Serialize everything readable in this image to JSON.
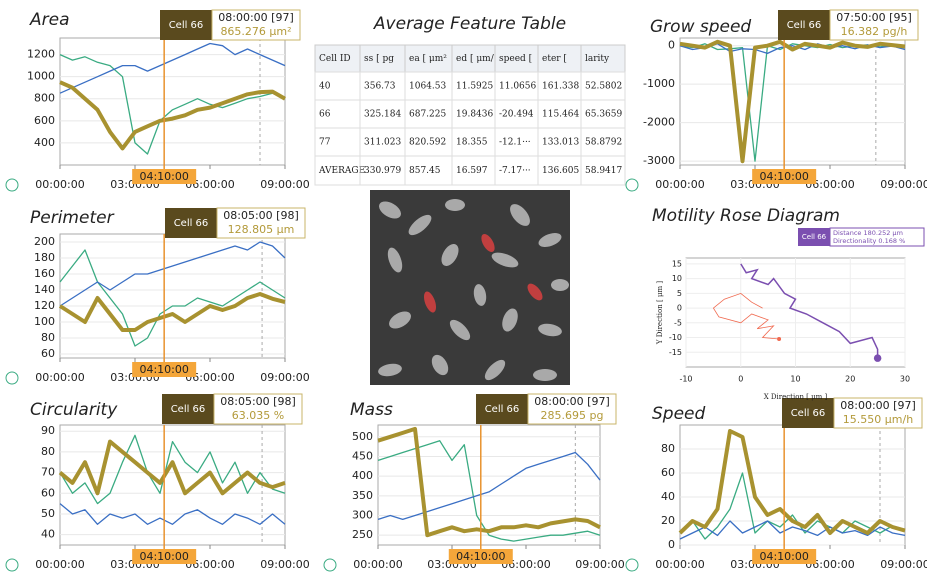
{
  "chart_data": [
    {
      "type": "line",
      "title": "Area",
      "x": [
        0,
        0.5,
        1,
        1.5,
        2,
        2.5,
        3,
        3.5,
        4,
        4.5,
        5,
        5.5,
        6,
        6.5,
        7,
        7.5,
        8,
        8.5,
        9
      ],
      "xlim": [
        0,
        9
      ],
      "xticks": [
        {
          "value": 0,
          "label": "00:00:00"
        },
        {
          "value": 3,
          "label": "03:00:00"
        },
        {
          "value": 6,
          "label": "06:00:00"
        },
        {
          "value": 9,
          "label": "09:00:00"
        }
      ],
      "ylim": [
        200,
        1350
      ],
      "yticks": [
        400,
        600,
        800,
        1000,
        1200
      ],
      "grid": true,
      "series": [
        {
          "color": "#3aab82",
          "width": 1.3,
          "values": [
            1200,
            1150,
            1180,
            1130,
            1100,
            1000,
            400,
            300,
            600,
            700,
            750,
            800,
            750,
            720,
            760,
            800,
            820,
            850,
            800
          ]
        },
        {
          "color": "#3a6fc4",
          "width": 1.3,
          "values": [
            850,
            900,
            950,
            1000,
            1050,
            1100,
            1100,
            1050,
            1100,
            1150,
            1200,
            1250,
            1300,
            1280,
            1200,
            1250,
            1200,
            1150,
            1100
          ]
        },
        {
          "color": "#a89230",
          "width": 4,
          "values": [
            950,
            900,
            800,
            700,
            500,
            350,
            500,
            550,
            600,
            620,
            650,
            700,
            720,
            760,
            800,
            840,
            860,
            865,
            800
          ]
        }
      ],
      "cursor": {
        "value": 4.1667,
        "label": "04:10:00"
      },
      "tooltip": {
        "x": 8,
        "cell": "Cell 66",
        "time": "08:00:00 [97]",
        "value": "865.276 μm²"
      }
    },
    {
      "type": "line",
      "title": "Perimeter",
      "x": [
        0,
        0.5,
        1,
        1.5,
        2,
        2.5,
        3,
        3.5,
        4,
        4.5,
        5,
        5.5,
        6,
        6.5,
        7,
        7.5,
        8,
        8.5,
        9
      ],
      "xlim": [
        0,
        9
      ],
      "xticks": [
        {
          "value": 0,
          "label": "00:00:00"
        },
        {
          "value": 3,
          "label": "03:00:00"
        },
        {
          "value": 6,
          "label": "06:00:00"
        },
        {
          "value": 9,
          "label": "09:00:00"
        }
      ],
      "ylim": [
        55,
        210
      ],
      "yticks": [
        60,
        80,
        100,
        120,
        140,
        160,
        180,
        200
      ],
      "grid": true,
      "series": [
        {
          "color": "#3aab82",
          "width": 1.3,
          "values": [
            150,
            170,
            190,
            150,
            130,
            110,
            70,
            80,
            110,
            120,
            120,
            130,
            125,
            120,
            130,
            140,
            150,
            140,
            130
          ]
        },
        {
          "color": "#3a6fc4",
          "width": 1.3,
          "values": [
            120,
            130,
            140,
            150,
            140,
            150,
            160,
            160,
            165,
            170,
            175,
            180,
            185,
            190,
            195,
            190,
            200,
            195,
            180
          ]
        },
        {
          "color": "#a89230",
          "width": 4,
          "values": [
            120,
            110,
            100,
            130,
            110,
            90,
            90,
            100,
            105,
            110,
            100,
            110,
            120,
            115,
            120,
            130,
            135,
            129,
            125
          ]
        }
      ],
      "cursor": {
        "value": 4.1667,
        "label": "04:10:00"
      },
      "tooltip": {
        "x": 8.0833,
        "cell": "Cell 66",
        "time": "08:05:00 [98]",
        "value": "128.805 μm"
      }
    },
    {
      "type": "line",
      "title": "Circularity",
      "x": [
        0,
        0.5,
        1,
        1.5,
        2,
        2.5,
        3,
        3.5,
        4,
        4.5,
        5,
        5.5,
        6,
        6.5,
        7,
        7.5,
        8,
        8.5,
        9
      ],
      "xlim": [
        0,
        9
      ],
      "xticks": [
        {
          "value": 0,
          "label": "00:00:00"
        },
        {
          "value": 3,
          "label": "03:00:00"
        },
        {
          "value": 6,
          "label": "06:00:00"
        },
        {
          "value": 9,
          "label": "09:00:00"
        }
      ],
      "ylim": [
        35,
        93
      ],
      "yticks": [
        40,
        50,
        60,
        70,
        80,
        90
      ],
      "grid": true,
      "series": [
        {
          "color": "#3aab82",
          "width": 1.3,
          "values": [
            70,
            60,
            65,
            55,
            60,
            75,
            88,
            70,
            60,
            85,
            75,
            70,
            80,
            65,
            75,
            60,
            70,
            62,
            60
          ]
        },
        {
          "color": "#3a6fc4",
          "width": 1.3,
          "values": [
            55,
            50,
            52,
            45,
            50,
            48,
            50,
            45,
            48,
            45,
            50,
            52,
            48,
            45,
            50,
            48,
            45,
            50,
            45
          ]
        },
        {
          "color": "#a89230",
          "width": 4,
          "values": [
            70,
            65,
            75,
            60,
            85,
            80,
            75,
            70,
            65,
            75,
            60,
            65,
            70,
            60,
            65,
            70,
            65,
            63,
            65
          ]
        }
      ],
      "cursor": {
        "value": 4.1667,
        "label": "04:10:00"
      },
      "tooltip": {
        "x": 8.0833,
        "cell": "Cell 66",
        "time": "08:05:00 [98]",
        "value": "63.035 %"
      }
    },
    {
      "type": "line",
      "title": "Mass",
      "x": [
        0,
        0.5,
        1,
        1.5,
        2,
        2.5,
        3,
        3.5,
        4,
        4.5,
        5,
        5.5,
        6,
        6.5,
        7,
        7.5,
        8,
        8.5,
        9
      ],
      "xlim": [
        0,
        9
      ],
      "xticks": [
        {
          "value": 0,
          "label": "00:00:00"
        },
        {
          "value": 3,
          "label": "03:00:00"
        },
        {
          "value": 6,
          "label": "06:00:00"
        },
        {
          "value": 9,
          "label": "09:00:00"
        }
      ],
      "ylim": [
        225,
        530
      ],
      "yticks": [
        250,
        300,
        350,
        400,
        450,
        500
      ],
      "grid": true,
      "series": [
        {
          "color": "#3aab82",
          "width": 1.3,
          "values": [
            440,
            450,
            460,
            470,
            480,
            490,
            440,
            480,
            300,
            250,
            240,
            235,
            240,
            245,
            250,
            250,
            255,
            260,
            250
          ]
        },
        {
          "color": "#3a6fc4",
          "width": 1.3,
          "values": [
            290,
            300,
            290,
            300,
            310,
            320,
            330,
            340,
            350,
            360,
            380,
            400,
            420,
            430,
            440,
            450,
            460,
            430,
            390
          ]
        },
        {
          "color": "#a89230",
          "width": 4,
          "values": [
            490,
            500,
            510,
            520,
            250,
            260,
            270,
            260,
            265,
            260,
            270,
            270,
            275,
            270,
            280,
            285,
            290,
            286,
            270
          ]
        }
      ],
      "cursor": {
        "value": 4.1667,
        "label": "04:10:00"
      },
      "tooltip": {
        "x": 8,
        "cell": "Cell 66",
        "time": "08:00:00 [97]",
        "value": "285.695 pg"
      }
    },
    {
      "type": "line",
      "title": "Grow speed",
      "x": [
        0,
        0.5,
        1,
        1.5,
        2,
        2.5,
        3,
        3.5,
        4,
        4.5,
        5,
        5.5,
        6,
        6.5,
        7,
        7.5,
        8,
        8.5,
        9
      ],
      "xlim": [
        0,
        9
      ],
      "xticks": [
        {
          "value": 0,
          "label": "00:00:00"
        },
        {
          "value": 3,
          "label": "03:00:00"
        },
        {
          "value": 6,
          "label": "06:00:00"
        },
        {
          "value": 9,
          "label": "09:00:00"
        }
      ],
      "ylim": [
        -3100,
        200
      ],
      "yticks": [
        0,
        -1000,
        -2000,
        -3000
      ],
      "grid": true,
      "series": [
        {
          "color": "#3aab82",
          "width": 1.3,
          "values": [
            0,
            -50,
            50,
            -100,
            -80,
            -50,
            -3000,
            0,
            -100,
            50,
            0,
            -50,
            30,
            -50,
            0,
            20,
            -30,
            16,
            0
          ]
        },
        {
          "color": "#3a6fc4",
          "width": 1.3,
          "values": [
            0,
            -100,
            -50,
            50,
            -150,
            -80,
            -100,
            -200,
            -50,
            0,
            -100,
            50,
            -50,
            0,
            -80,
            20,
            -50,
            -10,
            -100
          ]
        },
        {
          "color": "#a89230",
          "width": 4,
          "values": [
            50,
            0,
            -50,
            100,
            0,
            -3000,
            -50,
            0,
            100,
            -100,
            50,
            0,
            -50,
            80,
            0,
            -30,
            50,
            16,
            -20
          ]
        }
      ],
      "cursor": {
        "value": 4.1667,
        "label": "04:10:00"
      },
      "tooltip": {
        "x": 7.8333,
        "cell": "Cell 66",
        "time": "07:50:00 [95]",
        "value": "16.382 pg/h"
      }
    },
    {
      "type": "line",
      "title": "Speed",
      "x": [
        0,
        0.5,
        1,
        1.5,
        2,
        2.5,
        3,
        3.5,
        4,
        4.5,
        5,
        5.5,
        6,
        6.5,
        7,
        7.5,
        8,
        8.5,
        9
      ],
      "xlim": [
        0,
        9
      ],
      "xticks": [
        {
          "value": 0,
          "label": "00:00:00"
        },
        {
          "value": 3,
          "label": "03:00:00"
        },
        {
          "value": 6,
          "label": "06:00:00"
        },
        {
          "value": 9,
          "label": "09:00:00"
        }
      ],
      "ylim": [
        0,
        100
      ],
      "yticks": [
        0,
        20,
        40,
        60,
        80
      ],
      "grid": true,
      "series": [
        {
          "color": "#3aab82",
          "width": 1.3,
          "values": [
            10,
            20,
            5,
            15,
            30,
            60,
            10,
            20,
            15,
            25,
            10,
            20,
            15,
            10,
            20,
            15,
            10,
            16,
            12
          ]
        },
        {
          "color": "#3a6fc4",
          "width": 1.3,
          "values": [
            5,
            10,
            15,
            8,
            20,
            10,
            15,
            20,
            10,
            15,
            12,
            8,
            15,
            10,
            12,
            8,
            15,
            10,
            8
          ]
        },
        {
          "color": "#a89230",
          "width": 4,
          "values": [
            10,
            20,
            15,
            30,
            95,
            90,
            40,
            25,
            30,
            20,
            15,
            25,
            10,
            20,
            15,
            10,
            20,
            15,
            12
          ]
        }
      ],
      "cursor": {
        "value": 4.1667,
        "label": "04:10:00"
      },
      "tooltip": {
        "x": 8,
        "cell": "Cell 66",
        "time": "08:00:00 [97]",
        "value": "15.550 μm/h"
      }
    },
    {
      "type": "trajectory",
      "title": "Motility Rose Diagram",
      "x_label": "X Direction [ μm ]",
      "y_label": "Y Direction [ μm ]",
      "xlim": [
        -10,
        30
      ],
      "xticks": [
        -10,
        0,
        10,
        20,
        30
      ],
      "ylim": [
        -20,
        17
      ],
      "yticks": [
        -15,
        -10,
        -5,
        0,
        5,
        10,
        15
      ],
      "grid": true,
      "series": [
        {
          "color": "#f06a50",
          "width": 0.8,
          "x": [
            4,
            2,
            0,
            -3,
            -5,
            -4,
            0,
            2,
            5,
            3,
            6,
            4,
            7
          ],
          "values": [
            0,
            2,
            5,
            3,
            0,
            -3,
            -5,
            -2,
            -4,
            -7,
            -6,
            -10,
            -10.5
          ]
        },
        {
          "color": "#7b4fb0",
          "width": 1.5,
          "x": [
            0,
            1,
            3,
            2,
            5,
            6,
            8,
            10,
            9,
            12,
            15,
            18,
            20,
            24,
            25,
            25
          ],
          "values": [
            15,
            12,
            13,
            10,
            8,
            10,
            5,
            3,
            0,
            -2,
            -5,
            -8,
            -12,
            -10,
            -14,
            -17
          ]
        }
      ],
      "tooltip": {
        "cell": "Cell 66",
        "lines": [
          "Distance   180.252 μm",
          "Directionality 0.168 %"
        ]
      }
    }
  ],
  "table": {
    "title": "Average Feature Table",
    "headers": [
      "Cell ID",
      "ss [ pg",
      "ea [ μm²",
      "ed [ μm/",
      "speed [",
      "eter [",
      "larity"
    ],
    "rows": [
      [
        "40",
        "356.73",
        "1064.53",
        "11.5925",
        "11.0656",
        "161.338",
        "52.5802"
      ],
      [
        "66",
        "325.184",
        "687.225",
        "19.8436",
        "-20.494",
        "115.464",
        "65.3659"
      ],
      [
        "77",
        "311.023",
        "820.592",
        "18.355",
        "-12.1···",
        "133.013",
        "58.8792"
      ],
      [
        "AVERAGE",
        "330.979",
        "857.45",
        "16.597",
        "-7.17···",
        "136.605",
        "58.9417"
      ]
    ]
  }
}
